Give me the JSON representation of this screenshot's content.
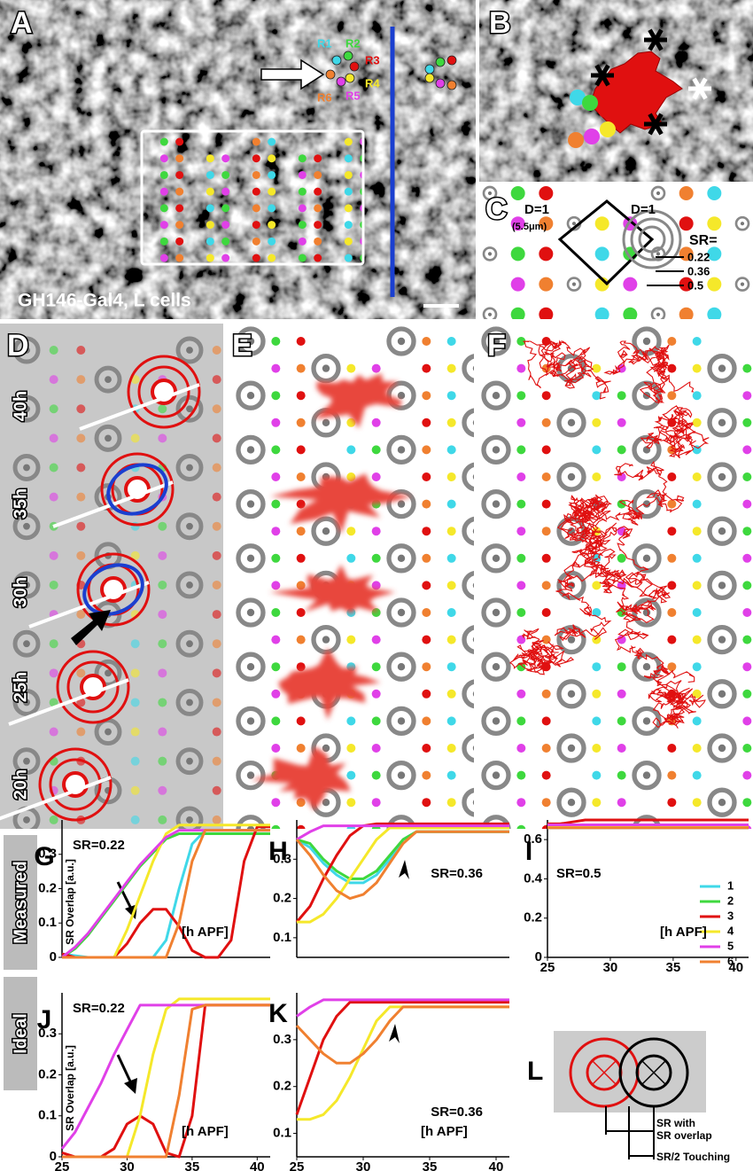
{
  "panels": {
    "A": {
      "letter": "A",
      "receptor_labels": [
        "R1",
        "R2",
        "R3",
        "R4",
        "R5",
        "R6"
      ],
      "caption": "GH146-Gal4, L cells"
    },
    "B": {
      "letter": "B"
    },
    "C": {
      "letter": "C",
      "distance_labels": [
        "D=1",
        "D=1"
      ],
      "distance_unit": "(5.5μm)",
      "sr_label": "SR=",
      "sr_values": [
        0.22,
        0.36,
        0.5
      ]
    },
    "D": {
      "letter": "D",
      "time_labels": [
        "40h",
        "35h",
        "30h",
        "25h",
        "20h"
      ]
    },
    "E": {
      "letter": "E"
    },
    "F": {
      "letter": "F"
    },
    "row_labels": [
      "Measured",
      "Ideal"
    ],
    "L": {
      "letter": "L",
      "labels": [
        "SR with",
        "SR overlap",
        "SR/2 Touching"
      ]
    }
  },
  "chart_data": [
    {
      "type": "line",
      "letter": "G",
      "annotation": "SR=0.22",
      "y_label": "SR Overlap [a.u.]",
      "x_label": "[h APF]",
      "x": [
        25,
        26,
        27,
        28,
        29,
        30,
        31,
        32,
        33,
        34,
        35,
        36,
        37,
        38,
        39,
        40,
        41
      ],
      "xlim": [
        25,
        41
      ],
      "ylim": [
        0,
        0.4
      ],
      "yticks": [
        0,
        0.1,
        0.2,
        0.3
      ],
      "series": [
        {
          "color": "#3fd8e8",
          "values": [
            0.01,
            0.005,
            0,
            0,
            0,
            0,
            0,
            0,
            0.05,
            0.2,
            0.33,
            0.37,
            0.37,
            0.37,
            0.37,
            0.37,
            0.37
          ]
        },
        {
          "color": "#3ed83e",
          "values": [
            0,
            0.025,
            0.065,
            0.115,
            0.165,
            0.215,
            0.265,
            0.305,
            0.345,
            0.36,
            0.36,
            0.36,
            0.36,
            0.36,
            0.36,
            0.36,
            0.36
          ]
        },
        {
          "color": "#e01010",
          "values": [
            0.01,
            0,
            0,
            0,
            0,
            0.04,
            0.1,
            0.14,
            0.14,
            0.09,
            0.02,
            0,
            0,
            0.05,
            0.28,
            0.38,
            0.38
          ]
        },
        {
          "color": "#f5e82a",
          "values": [
            0,
            0,
            0,
            0,
            0,
            0.08,
            0.18,
            0.28,
            0.36,
            0.385,
            0.385,
            0.385,
            0.385,
            0.385,
            0.385,
            0.385,
            0.385
          ]
        },
        {
          "color": "#e040e8",
          "values": [
            0,
            0.03,
            0.07,
            0.12,
            0.17,
            0.22,
            0.27,
            0.31,
            0.35,
            0.37,
            0.37,
            0.37,
            0.37,
            0.37,
            0.37,
            0.37,
            0.37
          ]
        },
        {
          "color": "#f08030",
          "values": [
            0,
            0,
            0,
            0,
            0,
            0,
            0,
            0,
            0,
            0.1,
            0.28,
            0.37,
            0.37,
            0.37,
            0.37,
            0.37,
            0.37
          ]
        }
      ]
    },
    {
      "type": "line",
      "letter": "H",
      "annotation": "SR=0.36",
      "x": [
        25,
        26,
        27,
        28,
        29,
        30,
        31,
        32,
        33,
        34,
        35,
        36,
        37,
        38,
        39,
        40,
        41
      ],
      "xlim": [
        25,
        41
      ],
      "ylim": [
        0.05,
        0.4
      ],
      "yticks": [
        0.1,
        0.2,
        0.3
      ],
      "series": [
        {
          "color": "#3fd8e8",
          "values": [
            0.35,
            0.33,
            0.29,
            0.26,
            0.24,
            0.24,
            0.26,
            0.3,
            0.35,
            0.37,
            0.37,
            0.37,
            0.37,
            0.37,
            0.37,
            0.37,
            0.37
          ]
        },
        {
          "color": "#3ed83e",
          "values": [
            0.35,
            0.34,
            0.3,
            0.27,
            0.25,
            0.25,
            0.27,
            0.31,
            0.35,
            0.37,
            0.37,
            0.37,
            0.37,
            0.37,
            0.37,
            0.37,
            0.37
          ]
        },
        {
          "color": "#e01010",
          "values": [
            0.14,
            0.18,
            0.25,
            0.31,
            0.36,
            0.385,
            0.39,
            0.39,
            0.39,
            0.39,
            0.39,
            0.39,
            0.39,
            0.39,
            0.39,
            0.39,
            0.39
          ]
        },
        {
          "color": "#f5e82a",
          "values": [
            0.14,
            0.14,
            0.16,
            0.2,
            0.25,
            0.3,
            0.35,
            0.38,
            0.38,
            0.38,
            0.38,
            0.38,
            0.38,
            0.38,
            0.38,
            0.38,
            0.38
          ]
        },
        {
          "color": "#e040e8",
          "values": [
            0.35,
            0.37,
            0.385,
            0.385,
            0.385,
            0.385,
            0.385,
            0.385,
            0.385,
            0.385,
            0.385,
            0.385,
            0.385,
            0.385,
            0.385,
            0.385,
            0.385
          ]
        },
        {
          "color": "#f08030",
          "values": [
            0.35,
            0.31,
            0.26,
            0.22,
            0.2,
            0.21,
            0.24,
            0.29,
            0.34,
            0.37,
            0.37,
            0.37,
            0.37,
            0.37,
            0.37,
            0.37,
            0.37
          ]
        }
      ]
    },
    {
      "type": "line",
      "letter": "I",
      "annotation": "SR=0.5",
      "x_label": "[h APF]",
      "x": [
        25,
        26,
        27,
        28,
        29,
        30,
        31,
        32,
        33,
        34,
        35,
        36,
        37,
        38,
        39,
        40,
        41
      ],
      "xlim": [
        25,
        41
      ],
      "ylim": [
        0,
        0.7
      ],
      "xticks": [
        25,
        30,
        35,
        40
      ],
      "yticks": [
        0,
        0.2,
        0.4,
        0.6
      ],
      "series": [
        {
          "name": "1",
          "color": "#3fd8e8",
          "values": [
            0.66,
            0.66,
            0.66,
            0.66,
            0.66,
            0.66,
            0.66,
            0.66,
            0.66,
            0.66,
            0.66,
            0.66,
            0.66,
            0.66,
            0.66,
            0.66,
            0.66
          ]
        },
        {
          "name": "2",
          "color": "#3ed83e",
          "values": [
            0.665,
            0.665,
            0.665,
            0.665,
            0.665,
            0.665,
            0.665,
            0.665,
            0.665,
            0.665,
            0.665,
            0.665,
            0.665,
            0.665,
            0.665,
            0.665,
            0.665
          ]
        },
        {
          "name": "3",
          "color": "#e01010",
          "values": [
            0.68,
            0.68,
            0.69,
            0.7,
            0.7,
            0.7,
            0.7,
            0.7,
            0.7,
            0.7,
            0.7,
            0.7,
            0.7,
            0.7,
            0.7,
            0.7,
            0.7
          ]
        },
        {
          "name": "4",
          "color": "#f5e82a",
          "values": [
            0.67,
            0.67,
            0.67,
            0.67,
            0.67,
            0.67,
            0.67,
            0.67,
            0.67,
            0.67,
            0.67,
            0.67,
            0.67,
            0.67,
            0.67,
            0.67,
            0.67
          ]
        },
        {
          "name": "5",
          "color": "#e040e8",
          "values": [
            0.675,
            0.675,
            0.675,
            0.675,
            0.675,
            0.675,
            0.675,
            0.675,
            0.675,
            0.675,
            0.675,
            0.675,
            0.675,
            0.675,
            0.675,
            0.675,
            0.675
          ]
        },
        {
          "name": "6",
          "color": "#f08030",
          "values": [
            0.66,
            0.66,
            0.66,
            0.66,
            0.66,
            0.66,
            0.66,
            0.66,
            0.66,
            0.66,
            0.66,
            0.66,
            0.66,
            0.66,
            0.66,
            0.66,
            0.66
          ]
        }
      ]
    },
    {
      "type": "line",
      "letter": "J",
      "annotation": "SR=0.22",
      "y_label": "SR Overlap [a.u.]",
      "x_label": "[h APF]",
      "x": [
        25,
        26,
        27,
        28,
        29,
        30,
        31,
        32,
        33,
        34,
        35,
        36,
        37,
        38,
        39,
        40,
        41
      ],
      "xlim": [
        25,
        41
      ],
      "ylim": [
        0,
        0.4
      ],
      "xticks": [
        25,
        30,
        35,
        40
      ],
      "yticks": [
        0,
        0.1,
        0.2,
        0.3
      ],
      "series": [
        {
          "color": "#e01010",
          "values": [
            0.01,
            0,
            0,
            0,
            0.02,
            0.08,
            0.1,
            0.08,
            0.01,
            0,
            0.1,
            0.37,
            0.37,
            0.37,
            0.37,
            0.37,
            0.37
          ]
        },
        {
          "color": "#f5e82a",
          "values": [
            0,
            0,
            0,
            0,
            0,
            0,
            0.1,
            0.25,
            0.36,
            0.385,
            0.385,
            0.385,
            0.385,
            0.385,
            0.385,
            0.385,
            0.385
          ]
        },
        {
          "color": "#e040e8",
          "values": [
            0.02,
            0.06,
            0.12,
            0.18,
            0.25,
            0.31,
            0.37,
            0.37,
            0.37,
            0.37,
            0.37,
            0.37,
            0.37,
            0.37,
            0.37,
            0.37,
            0.37
          ]
        },
        {
          "color": "#f08030",
          "values": [
            0,
            0,
            0,
            0,
            0,
            0,
            0,
            0,
            0,
            0.15,
            0.36,
            0.37,
            0.37,
            0.37,
            0.37,
            0.37,
            0.37
          ]
        }
      ]
    },
    {
      "type": "line",
      "letter": "K",
      "annotation": "SR=0.36",
      "x_label": "[h APF]",
      "x": [
        25,
        26,
        27,
        28,
        29,
        30,
        31,
        32,
        33,
        34,
        35,
        36,
        37,
        38,
        39,
        40,
        41
      ],
      "xlim": [
        25,
        41
      ],
      "ylim": [
        0.05,
        0.4
      ],
      "xticks": [
        25,
        30,
        35,
        40
      ],
      "yticks": [
        0.1,
        0.2,
        0.3
      ],
      "series": [
        {
          "color": "#e01010",
          "values": [
            0.14,
            0.22,
            0.3,
            0.35,
            0.38,
            0.38,
            0.38,
            0.38,
            0.38,
            0.38,
            0.38,
            0.38,
            0.38,
            0.38,
            0.38,
            0.38,
            0.38
          ]
        },
        {
          "color": "#f5e82a",
          "values": [
            0.13,
            0.13,
            0.14,
            0.17,
            0.22,
            0.28,
            0.34,
            0.37,
            0.37,
            0.37,
            0.37,
            0.37,
            0.37,
            0.37,
            0.37,
            0.37,
            0.37
          ]
        },
        {
          "color": "#e040e8",
          "values": [
            0.35,
            0.37,
            0.385,
            0.385,
            0.385,
            0.385,
            0.385,
            0.385,
            0.385,
            0.385,
            0.385,
            0.385,
            0.385,
            0.385,
            0.385,
            0.385,
            0.385
          ]
        },
        {
          "color": "#f08030",
          "values": [
            0.33,
            0.3,
            0.27,
            0.25,
            0.25,
            0.27,
            0.3,
            0.34,
            0.37,
            0.37,
            0.37,
            0.37,
            0.37,
            0.37,
            0.37,
            0.37,
            0.37
          ]
        }
      ]
    }
  ]
}
